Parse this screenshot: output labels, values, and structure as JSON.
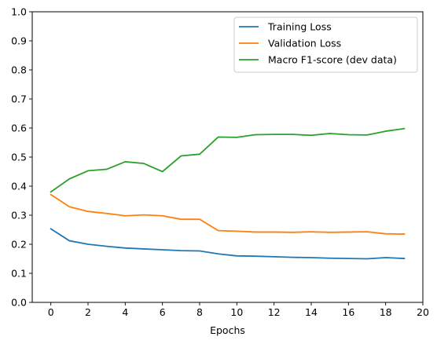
{
  "chart_data": {
    "type": "line",
    "title": "",
    "xlabel": "Epochs",
    "ylabel": "",
    "xlim": [
      -1,
      20
    ],
    "ylim": [
      0,
      1.0
    ],
    "xticks": [
      0,
      2,
      4,
      6,
      8,
      10,
      12,
      14,
      16,
      18,
      20
    ],
    "xtick_labels": [
      "0",
      "2",
      "4",
      "6",
      "8",
      "10",
      "12",
      "14",
      "16",
      "18",
      "20"
    ],
    "yticks": [
      0.0,
      0.1,
      0.2,
      0.3,
      0.4,
      0.5,
      0.6,
      0.7,
      0.8,
      0.9,
      1.0
    ],
    "ytick_labels": [
      "0.0",
      "0.1",
      "0.2",
      "0.3",
      "0.4",
      "0.5",
      "0.6",
      "0.7",
      "0.8",
      "0.9",
      "1.0"
    ],
    "grid": false,
    "legend_position": "top-right",
    "x": [
      0,
      1,
      2,
      3,
      4,
      5,
      6,
      7,
      8,
      9,
      10,
      11,
      12,
      13,
      14,
      15,
      16,
      17,
      18,
      19
    ],
    "series": [
      {
        "name": "Training Loss",
        "color": "#1f77b4",
        "values": [
          0.253,
          0.212,
          0.2,
          0.193,
          0.187,
          0.184,
          0.181,
          0.178,
          0.177,
          0.167,
          0.16,
          0.159,
          0.157,
          0.155,
          0.154,
          0.152,
          0.151,
          0.15,
          0.154,
          0.151
        ]
      },
      {
        "name": "Validation Loss",
        "color": "#ff7f0e",
        "values": [
          0.371,
          0.329,
          0.313,
          0.306,
          0.298,
          0.301,
          0.298,
          0.286,
          0.286,
          0.247,
          0.245,
          0.242,
          0.242,
          0.241,
          0.243,
          0.241,
          0.242,
          0.243,
          0.236,
          0.235
        ]
      },
      {
        "name": "Macro F1-score (dev data)",
        "color": "#2ca02c",
        "values": [
          0.38,
          0.425,
          0.453,
          0.458,
          0.484,
          0.478,
          0.45,
          0.504,
          0.51,
          0.569,
          0.568,
          0.577,
          0.578,
          0.578,
          0.575,
          0.581,
          0.577,
          0.576,
          0.589,
          0.598
        ]
      }
    ]
  }
}
